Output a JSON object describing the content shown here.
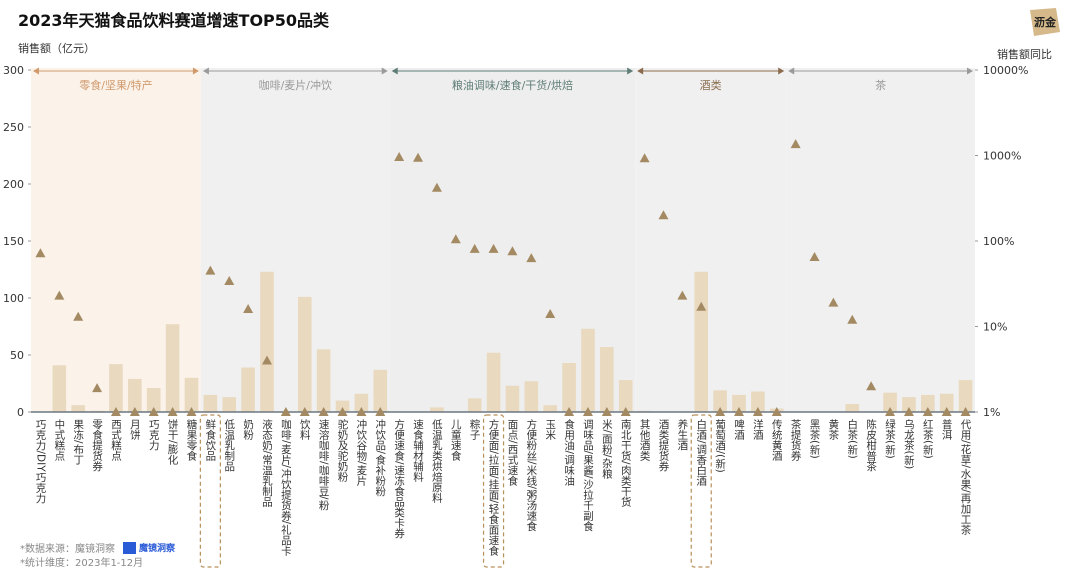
{
  "chart_data": {
    "type": "bar",
    "title": "2023年天猫食品饮料赛道增速TOP50品类",
    "ylabel": "销售额（亿元）",
    "y2label": "销售额同比",
    "logo": "沥金",
    "notes": [
      "*数据来源：魔镜洞察",
      "*统计维度：2023年1-12月"
    ],
    "source_logo": "魔镜洞察",
    "categories": [
      "巧克力/DIY巧克力",
      "中式糕点",
      "果冻/布丁",
      "零食提货券",
      "西式糕点",
      "月饼",
      "巧克力",
      "饼干/膨化",
      "糖果零食",
      "鲜食饮品",
      "低温乳制品",
      "奶粉",
      "液态奶/常温乳制品",
      "咖啡/麦片/冲饮提货券/礼品卡",
      "饮料",
      "速溶咖啡/咖啡豆/粉",
      "驼奶及驼奶粉",
      "冲饮谷物/麦片",
      "冲饮品/食补粉粉",
      "方便速食/速冻食品类卡券",
      "速食辅材辅料",
      "低温乳类烘焙原料",
      "儿童速食",
      "粽子",
      "方便面/拉面/挂面/轻食面速食",
      "面点/西式速食",
      "方便粉丝/米线/粥汤速食",
      "玉米",
      "食用油/调味油",
      "调味品/果酱/沙拉千副食",
      "米/面粉/杂粮",
      "南北干货/肉类干货",
      "其他酒类",
      "酒类提货券",
      "养生酒",
      "白酒/调香白酒",
      "葡萄酒/(新)",
      "啤酒",
      "洋酒",
      "传统黄酒",
      "茶提货券",
      "黑茶(新)",
      "黄茶",
      "白茶(新)",
      "陈皮柑普茶",
      "绿茶(新)",
      "乌龙茶(新)",
      "红茶(新)",
      "普洱",
      "代用/花草/水果/再加工茶"
    ],
    "series": [
      {
        "color": "#e9d9bf",
        "values": [
          0,
          41,
          6,
          1,
          42,
          29,
          21,
          77,
          30,
          15,
          13,
          39,
          123,
          0,
          101,
          55,
          10,
          16,
          37,
          0,
          0,
          4,
          0,
          12,
          52,
          23,
          27,
          6,
          43,
          73,
          57,
          28,
          1,
          0,
          0,
          123,
          19,
          15,
          18,
          3,
          0,
          0,
          0,
          7,
          0,
          17,
          13,
          15,
          16,
          28
        ]
      },
      {
        "color": "#a48a62",
        "axis": "y2",
        "values": [
          72,
          23,
          13,
          1.9,
          1,
          1,
          1,
          1,
          1,
          45,
          34,
          16,
          4,
          1,
          1,
          1,
          1,
          1,
          1,
          960,
          940,
          420,
          105,
          81,
          81,
          76,
          63,
          14,
          1,
          1,
          1,
          1,
          930,
          200,
          23,
          17,
          1,
          1,
          1,
          1,
          1360,
          65,
          19,
          12,
          2,
          1,
          1,
          1,
          1,
          1
        ]
      }
    ],
    "ylim": [
      0,
      300
    ],
    "yticks": [
      0,
      50,
      100,
      150,
      200,
      250,
      300
    ],
    "y2lim": [
      1,
      10000
    ],
    "y2log": true,
    "y2ticks": [
      {
        "value": 1,
        "label": "1%"
      },
      {
        "value": 10,
        "label": "10%"
      },
      {
        "value": 100,
        "label": "100%"
      },
      {
        "value": 1000,
        "label": "1000%"
      },
      {
        "value": 10000,
        "label": "10000%"
      }
    ],
    "groups": [
      {
        "name": "零食/坚果/特产",
        "color": "#d09a6c",
        "bg": "#fbf2ea",
        "from": 0,
        "to": 8
      },
      {
        "name": "咖啡/麦片/冲饮",
        "color": "#9a9a9a",
        "bg": "#f0f0f0",
        "from": 9,
        "to": 18
      },
      {
        "name": "粮油调味/速食/干货/烘焙",
        "color": "#5f7d76",
        "bg": "#eeeeee",
        "from": 19,
        "to": 31
      },
      {
        "name": "酒类",
        "color": "#8a6b4d",
        "bg": "#f0f0f0",
        "from": 32,
        "to": 39
      },
      {
        "name": "茶",
        "color": "#9a9a9a",
        "bg": "#f0f0f0",
        "from": 40,
        "to": 49
      }
    ],
    "highlight": [
      9,
      24,
      35
    ]
  }
}
